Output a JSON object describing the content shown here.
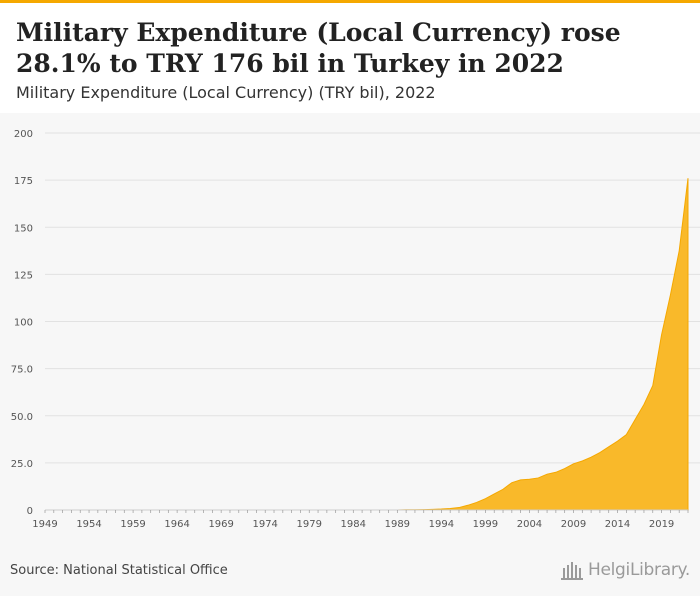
{
  "header": {
    "title": "Military Expenditure (Local Currency) rose 28.1% to TRY 176 bil in Turkey in 2022",
    "subtitle": "Military Expenditure (Local Currency) (TRY bil), 2022"
  },
  "footer": {
    "source": "Source: National Statistical Office",
    "logo_text": "HelgiLibrary."
  },
  "colors": {
    "accent": "#f5a800",
    "area_fill": "#f9b92a",
    "area_stroke": "#f5a800",
    "plot_background": "#f7f7f7",
    "gridline": "#e2e2e2",
    "tick_label": "#555555"
  },
  "chart_data": {
    "type": "area",
    "title": "Military Expenditure (Local Currency) rose 28.1% to TRY 176 bil in Turkey in 2022",
    "subtitle": "Military Expenditure (Local Currency) (TRY bil), 2022",
    "xlabel": "",
    "ylabel": "",
    "ylim": [
      0,
      200
    ],
    "xlim": [
      1949,
      2022
    ],
    "grid": true,
    "legend": "none",
    "y_ticks": [
      "0",
      "25.0",
      "50.0",
      "75.0",
      "100",
      "125",
      "150",
      "175",
      "200"
    ],
    "x_ticks": [
      "1949",
      "1954",
      "1959",
      "1964",
      "1969",
      "1974",
      "1979",
      "1984",
      "1989",
      "1994",
      "1999",
      "2004",
      "2009",
      "2014",
      "2019"
    ],
    "series": [
      {
        "name": "",
        "points": [
          [
            1949,
            0.0
          ],
          [
            1950,
            0.0
          ],
          [
            1951,
            0.0
          ],
          [
            1952,
            0.0
          ],
          [
            1953,
            0.0
          ],
          [
            1954,
            0.0
          ],
          [
            1955,
            0.0
          ],
          [
            1956,
            0.0
          ],
          [
            1957,
            0.0
          ],
          [
            1958,
            0.0
          ],
          [
            1959,
            0.0
          ],
          [
            1960,
            0.0
          ],
          [
            1961,
            0.0
          ],
          [
            1962,
            0.0
          ],
          [
            1963,
            0.0
          ],
          [
            1964,
            0.0
          ],
          [
            1965,
            0.0
          ],
          [
            1966,
            0.0
          ],
          [
            1967,
            0.0
          ],
          [
            1968,
            0.0
          ],
          [
            1969,
            0.0
          ],
          [
            1970,
            0.0
          ],
          [
            1971,
            0.0
          ],
          [
            1972,
            0.0
          ],
          [
            1973,
            0.0
          ],
          [
            1974,
            0.0
          ],
          [
            1975,
            0.0
          ],
          [
            1976,
            0.0
          ],
          [
            1977,
            0.0
          ],
          [
            1978,
            0.0
          ],
          [
            1979,
            0.0
          ],
          [
            1980,
            0.0
          ],
          [
            1981,
            0.0
          ],
          [
            1982,
            0.0
          ],
          [
            1983,
            0.0
          ],
          [
            1984,
            0.0
          ],
          [
            1985,
            0.0
          ],
          [
            1986,
            0.0
          ],
          [
            1987,
            0.0
          ],
          [
            1988,
            0.0
          ],
          [
            1989,
            0.0
          ],
          [
            1990,
            0.1
          ],
          [
            1991,
            0.1
          ],
          [
            1992,
            0.2
          ],
          [
            1993,
            0.3
          ],
          [
            1994,
            0.5
          ],
          [
            1995,
            0.8
          ],
          [
            1996,
            1.3
          ],
          [
            1997,
            2.5
          ],
          [
            1998,
            4.0
          ],
          [
            1999,
            6.0
          ],
          [
            2000,
            8.5
          ],
          [
            2001,
            11.0
          ],
          [
            2002,
            14.5
          ],
          [
            2003,
            16.0
          ],
          [
            2004,
            16.3
          ],
          [
            2005,
            17.0
          ],
          [
            2006,
            19.0
          ],
          [
            2007,
            20.0
          ],
          [
            2008,
            22.0
          ],
          [
            2009,
            24.5
          ],
          [
            2010,
            26.0
          ],
          [
            2011,
            28.0
          ],
          [
            2012,
            30.5
          ],
          [
            2013,
            33.5
          ],
          [
            2014,
            36.5
          ],
          [
            2015,
            40.0
          ],
          [
            2016,
            48.0
          ],
          [
            2017,
            56.0
          ],
          [
            2018,
            66.0
          ],
          [
            2019,
            93.0
          ],
          [
            2020,
            114.0
          ],
          [
            2021,
            137.5
          ],
          [
            2022,
            176.0
          ]
        ]
      }
    ]
  }
}
